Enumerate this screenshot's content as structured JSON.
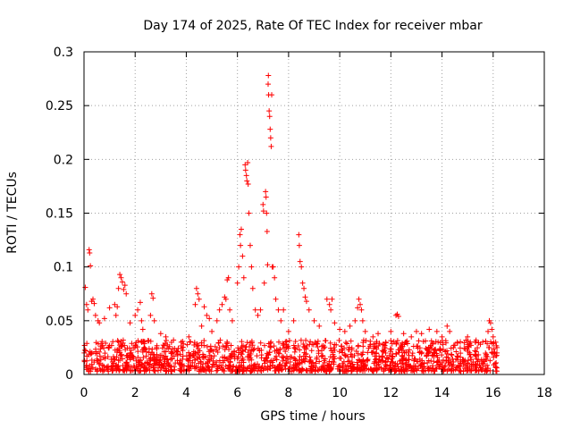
{
  "chart_data": {
    "type": "scatter",
    "title": "Day 174 of 2025, Rate Of TEC Index for receiver mbar",
    "xlabel": "GPS time / hours",
    "ylabel": "ROTI / TECUs",
    "xlim": [
      0,
      18
    ],
    "ylim": [
      0,
      0.3
    ],
    "xticks": [
      "0",
      "2",
      "4",
      "6",
      "8",
      "10",
      "12",
      "14",
      "16",
      "18"
    ],
    "yticks": [
      "0",
      "0.05",
      "0.1",
      "0.15",
      "0.2",
      "0.25",
      "0.3"
    ],
    "grid": true,
    "marker": "+",
    "color": "#ff0000",
    "series": [
      {
        "name": "ROTI",
        "points": [
          [
            0.05,
            0.081
          ],
          [
            0.1,
            0.065
          ],
          [
            0.15,
            0.06
          ],
          [
            0.2,
            0.116
          ],
          [
            0.22,
            0.113
          ],
          [
            0.25,
            0.101
          ],
          [
            0.3,
            0.068
          ],
          [
            0.35,
            0.07
          ],
          [
            0.4,
            0.066
          ],
          [
            0.45,
            0.055
          ],
          [
            0.55,
            0.05
          ],
          [
            0.6,
            0.048
          ],
          [
            0.8,
            0.052
          ],
          [
            1.0,
            0.062
          ],
          [
            1.2,
            0.065
          ],
          [
            1.25,
            0.055
          ],
          [
            1.3,
            0.063
          ],
          [
            1.35,
            0.08
          ],
          [
            1.4,
            0.093
          ],
          [
            1.45,
            0.09
          ],
          [
            1.5,
            0.086
          ],
          [
            1.55,
            0.079
          ],
          [
            1.6,
            0.083
          ],
          [
            1.65,
            0.075
          ],
          [
            1.8,
            0.048
          ],
          [
            2.0,
            0.055
          ],
          [
            2.1,
            0.06
          ],
          [
            2.2,
            0.067
          ],
          [
            2.25,
            0.05
          ],
          [
            2.3,
            0.042
          ],
          [
            2.6,
            0.055
          ],
          [
            2.65,
            0.075
          ],
          [
            2.7,
            0.071
          ],
          [
            2.75,
            0.05
          ],
          [
            3.0,
            0.038
          ],
          [
            3.2,
            0.035
          ],
          [
            3.5,
            0.032
          ],
          [
            3.8,
            0.03
          ],
          [
            4.1,
            0.035
          ],
          [
            4.35,
            0.065
          ],
          [
            4.4,
            0.08
          ],
          [
            4.45,
            0.075
          ],
          [
            4.5,
            0.07
          ],
          [
            4.6,
            0.045
          ],
          [
            4.7,
            0.063
          ],
          [
            4.8,
            0.055
          ],
          [
            4.9,
            0.052
          ],
          [
            5.0,
            0.04
          ],
          [
            5.2,
            0.05
          ],
          [
            5.3,
            0.06
          ],
          [
            5.4,
            0.065
          ],
          [
            5.5,
            0.072
          ],
          [
            5.55,
            0.07
          ],
          [
            5.6,
            0.088
          ],
          [
            5.65,
            0.09
          ],
          [
            5.7,
            0.06
          ],
          [
            5.8,
            0.05
          ],
          [
            6.0,
            0.085
          ],
          [
            6.05,
            0.1
          ],
          [
            6.1,
            0.13
          ],
          [
            6.12,
            0.12
          ],
          [
            6.15,
            0.135
          ],
          [
            6.2,
            0.11
          ],
          [
            6.25,
            0.09
          ],
          [
            6.3,
            0.195
          ],
          [
            6.32,
            0.19
          ],
          [
            6.35,
            0.185
          ],
          [
            6.37,
            0.18
          ],
          [
            6.4,
            0.197
          ],
          [
            6.42,
            0.177
          ],
          [
            6.45,
            0.15
          ],
          [
            6.5,
            0.12
          ],
          [
            6.55,
            0.1
          ],
          [
            6.6,
            0.08
          ],
          [
            6.7,
            0.06
          ],
          [
            6.8,
            0.055
          ],
          [
            6.9,
            0.06
          ],
          [
            7.0,
            0.158
          ],
          [
            7.02,
            0.152
          ],
          [
            7.05,
            0.085
          ],
          [
            7.1,
            0.17
          ],
          [
            7.12,
            0.165
          ],
          [
            7.14,
            0.15
          ],
          [
            7.16,
            0.133
          ],
          [
            7.18,
            0.102
          ],
          [
            7.2,
            0.27
          ],
          [
            7.21,
            0.278
          ],
          [
            7.22,
            0.26
          ],
          [
            7.24,
            0.245
          ],
          [
            7.26,
            0.24
          ],
          [
            7.28,
            0.228
          ],
          [
            7.3,
            0.22
          ],
          [
            7.32,
            0.212
          ],
          [
            7.34,
            0.26
          ],
          [
            7.36,
            0.1
          ],
          [
            7.4,
            0.1
          ],
          [
            7.45,
            0.09
          ],
          [
            7.5,
            0.07
          ],
          [
            7.6,
            0.06
          ],
          [
            7.7,
            0.05
          ],
          [
            7.8,
            0.06
          ],
          [
            8.0,
            0.04
          ],
          [
            8.2,
            0.05
          ],
          [
            8.4,
            0.13
          ],
          [
            8.42,
            0.12
          ],
          [
            8.45,
            0.105
          ],
          [
            8.5,
            0.1
          ],
          [
            8.55,
            0.085
          ],
          [
            8.6,
            0.08
          ],
          [
            8.65,
            0.072
          ],
          [
            8.7,
            0.068
          ],
          [
            8.8,
            0.06
          ],
          [
            9.0,
            0.05
          ],
          [
            9.2,
            0.045
          ],
          [
            9.5,
            0.07
          ],
          [
            9.6,
            0.065
          ],
          [
            9.65,
            0.06
          ],
          [
            9.7,
            0.07
          ],
          [
            9.8,
            0.048
          ],
          [
            10.0,
            0.042
          ],
          [
            10.2,
            0.04
          ],
          [
            10.4,
            0.045
          ],
          [
            10.6,
            0.05
          ],
          [
            10.7,
            0.062
          ],
          [
            10.75,
            0.07
          ],
          [
            10.8,
            0.065
          ],
          [
            10.85,
            0.06
          ],
          [
            10.9,
            0.05
          ],
          [
            11.0,
            0.04
          ],
          [
            11.3,
            0.035
          ],
          [
            11.5,
            0.038
          ],
          [
            11.8,
            0.03
          ],
          [
            12.0,
            0.04
          ],
          [
            12.2,
            0.055
          ],
          [
            12.25,
            0.056
          ],
          [
            12.3,
            0.054
          ],
          [
            12.5,
            0.038
          ],
          [
            12.8,
            0.035
          ],
          [
            13.0,
            0.04
          ],
          [
            13.2,
            0.038
          ],
          [
            13.5,
            0.042
          ],
          [
            13.8,
            0.04
          ],
          [
            14.0,
            0.035
          ],
          [
            14.2,
            0.045
          ],
          [
            14.3,
            0.04
          ],
          [
            14.6,
            0.03
          ],
          [
            15.0,
            0.035
          ],
          [
            15.3,
            0.03
          ],
          [
            15.5,
            0.028
          ],
          [
            15.8,
            0.04
          ],
          [
            15.85,
            0.05
          ],
          [
            15.9,
            0.048
          ],
          [
            15.95,
            0.042
          ],
          [
            16.0,
            0.035
          ],
          [
            16.1,
            0.03
          ]
        ],
        "band": {
          "description_hours": [
            0,
            16.15
          ],
          "y_range": [
            0.003,
            0.032
          ],
          "count": 1500
        }
      }
    ]
  }
}
